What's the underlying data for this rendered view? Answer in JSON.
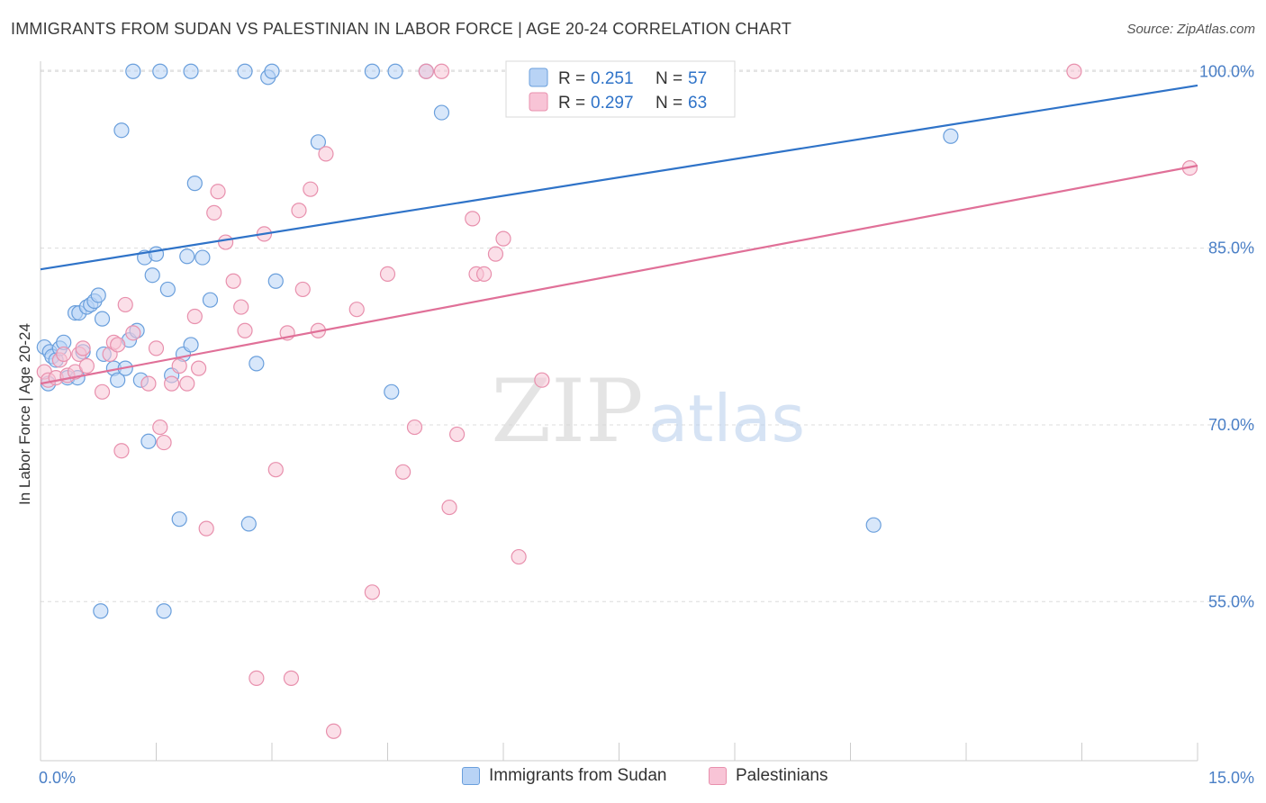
{
  "title": "IMMIGRANTS FROM SUDAN VS PALESTINIAN IN LABOR FORCE | AGE 20-24 CORRELATION CHART",
  "source": "Source: ZipAtlas.com",
  "watermark": {
    "zip": "ZIP",
    "atlas": "atlas"
  },
  "colors": {
    "sudan_fill": "#b8d3f5",
    "sudan_stroke": "#6a9fdc",
    "sudan_line": "#2f73c8",
    "pal_fill": "#f8c4d6",
    "pal_stroke": "#e890ad",
    "pal_line": "#e07098",
    "tick_text": "#4a7fc6",
    "grid": "#dcdcdc"
  },
  "legend": {
    "rows": [
      {
        "r_label": "R =",
        "r_value": "0.251",
        "n_label": "N =",
        "n_value": "57"
      },
      {
        "r_label": "R =",
        "r_value": "0.297",
        "n_label": "N =",
        "n_value": "63"
      }
    ]
  },
  "bottom_legend": {
    "sudan": "Immigrants from Sudan",
    "pal": "Palestinians"
  },
  "chart_data": {
    "type": "scatter",
    "title": "IMMIGRANTS FROM SUDAN VS PALESTINIAN IN LABOR FORCE | AGE 20-24 CORRELATION CHART",
    "xlabel": "",
    "ylabel": "In Labor Force | Age 20-24",
    "xlim": [
      0,
      15
    ],
    "ylim": [
      0.415,
      1.03
    ],
    "x_ticks": [
      {
        "value": 0,
        "label": "0.0%"
      },
      {
        "value": 15,
        "label": "15.0%"
      }
    ],
    "x_minor_ticks": [
      1.5,
      3.0,
      4.5,
      6.0,
      7.5,
      9.0,
      10.5,
      12.0,
      13.5,
      15.0
    ],
    "y_ticks": [
      {
        "value": 0.55,
        "label": "55.0%"
      },
      {
        "value": 0.7,
        "label": "70.0%"
      },
      {
        "value": 0.85,
        "label": "85.0%"
      },
      {
        "value": 1.0,
        "label": "100.0%"
      }
    ],
    "grid": true,
    "legend_position": "top-center",
    "series": [
      {
        "name": "Immigrants from Sudan",
        "trend": {
          "x": [
            0,
            15
          ],
          "y": [
            0.832,
            0.988
          ]
        },
        "points": [
          [
            0.05,
            0.766
          ],
          [
            0.1,
            0.735
          ],
          [
            0.12,
            0.762
          ],
          [
            0.15,
            0.758
          ],
          [
            0.2,
            0.755
          ],
          [
            0.25,
            0.765
          ],
          [
            0.3,
            0.77
          ],
          [
            0.35,
            0.74
          ],
          [
            0.45,
            0.795
          ],
          [
            0.5,
            0.795
          ],
          [
            0.6,
            0.8
          ],
          [
            0.65,
            0.802
          ],
          [
            0.7,
            0.805
          ],
          [
            0.75,
            0.81
          ],
          [
            0.8,
            0.79
          ],
          [
            0.82,
            0.76
          ],
          [
            0.95,
            0.748
          ],
          [
            1.0,
            0.738
          ],
          [
            1.1,
            0.748
          ],
          [
            1.15,
            0.772
          ],
          [
            1.25,
            0.78
          ],
          [
            1.3,
            0.738
          ],
          [
            1.35,
            0.842
          ],
          [
            1.4,
            0.686
          ],
          [
            1.45,
            0.827
          ],
          [
            1.5,
            0.845
          ],
          [
            1.6,
            0.542
          ],
          [
            1.65,
            0.815
          ],
          [
            1.7,
            0.742
          ],
          [
            1.8,
            0.62
          ],
          [
            1.85,
            0.76
          ],
          [
            1.9,
            0.843
          ],
          [
            1.95,
            0.768
          ],
          [
            2.0,
            0.905
          ],
          [
            2.1,
            0.842
          ],
          [
            2.2,
            0.806
          ],
          [
            2.8,
            0.752
          ],
          [
            2.7,
            0.616
          ],
          [
            3.05,
            0.822
          ],
          [
            3.6,
            0.94
          ],
          [
            1.2,
            1.0
          ],
          [
            1.55,
            1.0
          ],
          [
            1.95,
            1.0
          ],
          [
            2.65,
            1.0
          ],
          [
            2.95,
            0.995
          ],
          [
            3.0,
            1.0
          ],
          [
            4.3,
            1.0
          ],
          [
            4.6,
            1.0
          ],
          [
            5.0,
            1.0
          ],
          [
            5.2,
            0.965
          ],
          [
            1.05,
            0.95
          ],
          [
            0.78,
            0.542
          ],
          [
            4.55,
            0.728
          ],
          [
            10.8,
            0.615
          ],
          [
            11.8,
            0.945
          ],
          [
            0.48,
            0.74
          ],
          [
            0.55,
            0.762
          ]
        ]
      },
      {
        "name": "Palestinians",
        "trend": {
          "x": [
            0,
            15
          ],
          "y": [
            0.735,
            0.92
          ]
        },
        "points": [
          [
            0.05,
            0.745
          ],
          [
            0.1,
            0.738
          ],
          [
            0.2,
            0.74
          ],
          [
            0.25,
            0.755
          ],
          [
            0.3,
            0.76
          ],
          [
            0.35,
            0.742
          ],
          [
            0.45,
            0.745
          ],
          [
            0.5,
            0.76
          ],
          [
            0.55,
            0.765
          ],
          [
            0.6,
            0.75
          ],
          [
            0.8,
            0.728
          ],
          [
            0.9,
            0.76
          ],
          [
            0.95,
            0.77
          ],
          [
            1.0,
            0.768
          ],
          [
            1.05,
            0.678
          ],
          [
            1.1,
            0.802
          ],
          [
            1.2,
            0.778
          ],
          [
            1.4,
            0.735
          ],
          [
            1.5,
            0.765
          ],
          [
            1.55,
            0.698
          ],
          [
            1.6,
            0.685
          ],
          [
            1.7,
            0.735
          ],
          [
            1.8,
            0.75
          ],
          [
            1.9,
            0.735
          ],
          [
            2.0,
            0.792
          ],
          [
            2.05,
            0.748
          ],
          [
            2.15,
            0.612
          ],
          [
            2.25,
            0.88
          ],
          [
            2.3,
            0.898
          ],
          [
            2.4,
            0.855
          ],
          [
            2.5,
            0.822
          ],
          [
            2.6,
            0.8
          ],
          [
            2.65,
            0.78
          ],
          [
            2.8,
            0.485
          ],
          [
            2.9,
            0.862
          ],
          [
            3.05,
            0.662
          ],
          [
            3.2,
            0.778
          ],
          [
            3.25,
            0.485
          ],
          [
            3.35,
            0.882
          ],
          [
            3.4,
            0.815
          ],
          [
            3.5,
            0.9
          ],
          [
            3.6,
            0.78
          ],
          [
            3.7,
            0.93
          ],
          [
            3.8,
            0.44
          ],
          [
            4.1,
            0.798
          ],
          [
            4.3,
            0.558
          ],
          [
            4.5,
            0.828
          ],
          [
            4.7,
            0.66
          ],
          [
            4.85,
            0.698
          ],
          [
            5.0,
            1.0
          ],
          [
            5.2,
            1.0
          ],
          [
            5.3,
            0.63
          ],
          [
            5.4,
            0.692
          ],
          [
            5.6,
            0.875
          ],
          [
            5.65,
            0.828
          ],
          [
            5.75,
            0.828
          ],
          [
            5.9,
            0.845
          ],
          [
            6.0,
            0.858
          ],
          [
            6.2,
            0.588
          ],
          [
            6.5,
            0.738
          ],
          [
            7.2,
            1.0
          ],
          [
            13.4,
            1.0
          ],
          [
            14.9,
            0.918
          ]
        ]
      }
    ]
  }
}
